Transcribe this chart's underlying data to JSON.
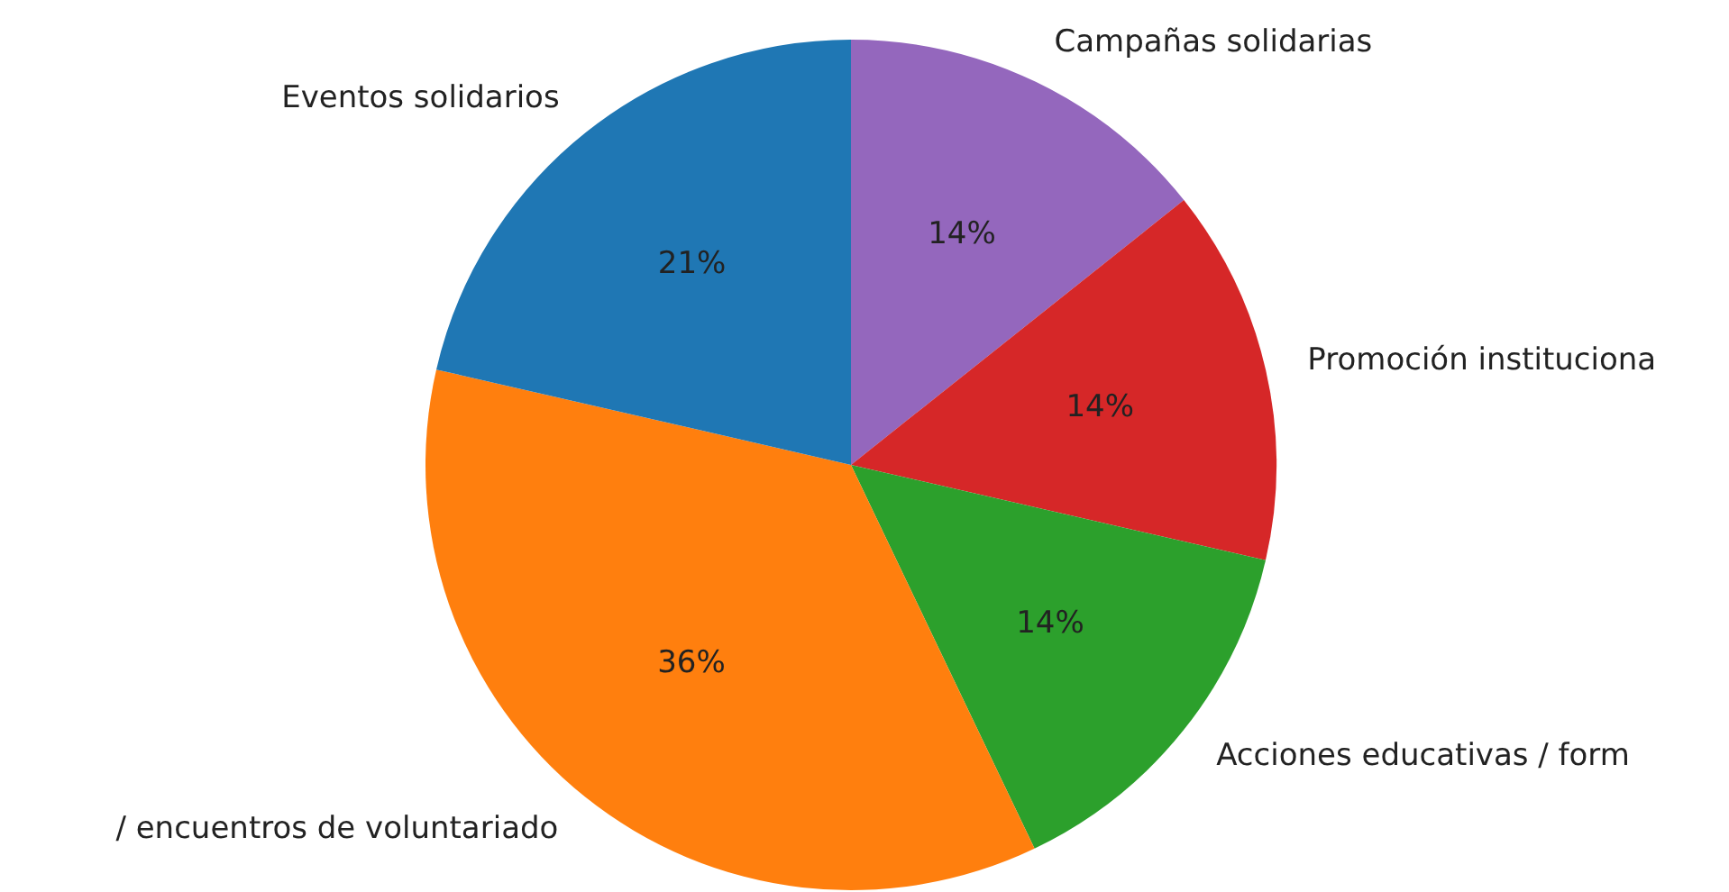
{
  "chart_data": {
    "type": "pie",
    "categories": [
      "Campañas solidarias",
      "Promoción instituciona",
      "Acciones educativas / form",
      "/ encuentros de voluntariado",
      "Eventos solidarios"
    ],
    "values": [
      14.3,
      14.3,
      14.3,
      35.7,
      21.4
    ],
    "value_labels": [
      "14%",
      "14%",
      "14%",
      "36%",
      "21%"
    ],
    "colors": [
      "#9467bd",
      "#d62728",
      "#2ca02c",
      "#ff7f0e",
      "#1f77b4"
    ],
    "legend": false
  }
}
